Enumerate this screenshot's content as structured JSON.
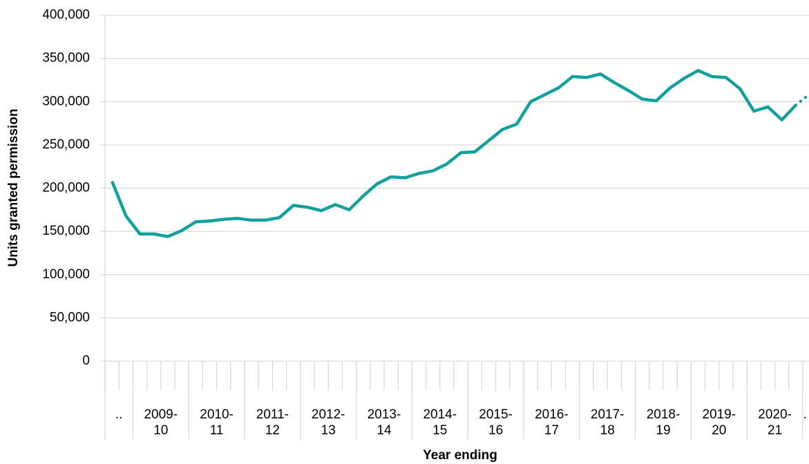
{
  "chart_data": {
    "type": "line",
    "y_label": "Units granted permission",
    "x_label": "Year ending",
    "categories": [
      null,
      null,
      null,
      null,
      null,
      null,
      null,
      null,
      null,
      null,
      null,
      null,
      null,
      null,
      null,
      null,
      null,
      null,
      null,
      null,
      null,
      null,
      null,
      null,
      null,
      null,
      null,
      null,
      null,
      null,
      null,
      null,
      null,
      null,
      null,
      null,
      null,
      null,
      null,
      null,
      null,
      null,
      null,
      null,
      null,
      null,
      null,
      null,
      null,
      null,
      null
    ],
    "category_groups": [
      {
        "lines": [
          ".."
        ],
        "span": 2
      },
      {
        "lines": [
          "2009-",
          "10"
        ],
        "span": 4
      },
      {
        "lines": [
          "2010-",
          "11"
        ],
        "span": 4
      },
      {
        "lines": [
          "2011-",
          "12"
        ],
        "span": 4
      },
      {
        "lines": [
          "2012-",
          "13"
        ],
        "span": 4
      },
      {
        "lines": [
          "2013-",
          "14"
        ],
        "span": 4
      },
      {
        "lines": [
          "2014-",
          "15"
        ],
        "span": 4
      },
      {
        "lines": [
          "2015-",
          "16"
        ],
        "span": 4
      },
      {
        "lines": [
          "2016-",
          "17"
        ],
        "span": 4
      },
      {
        "lines": [
          "2017-",
          "18"
        ],
        "span": 4
      },
      {
        "lines": [
          "2018-",
          "19"
        ],
        "span": 4
      },
      {
        "lines": [
          "2019-",
          "20"
        ],
        "span": 4
      },
      {
        "lines": [
          "2020-",
          "21"
        ],
        "span": 4
      },
      {
        "lines": [
          "."
        ],
        "span": 1
      }
    ],
    "series": [
      {
        "color": "#12a09a",
        "values": [
          208000,
          168000,
          147000,
          147000,
          144000,
          151000,
          161000,
          162000,
          164000,
          165000,
          163000,
          163000,
          166000,
          180000,
          178000,
          174000,
          181000,
          175000,
          191000,
          205000,
          213000,
          212000,
          217000,
          220000,
          228000,
          241000,
          242000,
          255000,
          268000,
          274000,
          300000,
          308000,
          316000,
          329000,
          328000,
          332000,
          322000,
          313000,
          303000,
          301000,
          316000,
          327000,
          336000,
          329000,
          328000,
          315000,
          289000,
          294000,
          279000,
          296000,
          309000
        ]
      }
    ],
    "last_segment_dotted": true,
    "ylim": [
      0,
      400000
    ],
    "yticks": [
      0,
      {
        "value": 50000,
        "label": "50,000"
      },
      {
        "value": 100000,
        "label": "100,000"
      },
      {
        "value": 150000,
        "label": "150,000"
      },
      {
        "value": 200000,
        "label": "200,000"
      },
      {
        "value": 250000,
        "label": "250,000"
      },
      {
        "value": 300000,
        "label": "300,000"
      },
      {
        "value": 350000,
        "label": "350,000"
      },
      {
        "value": 400000,
        "label": "400,000"
      }
    ],
    "grid": true
  }
}
